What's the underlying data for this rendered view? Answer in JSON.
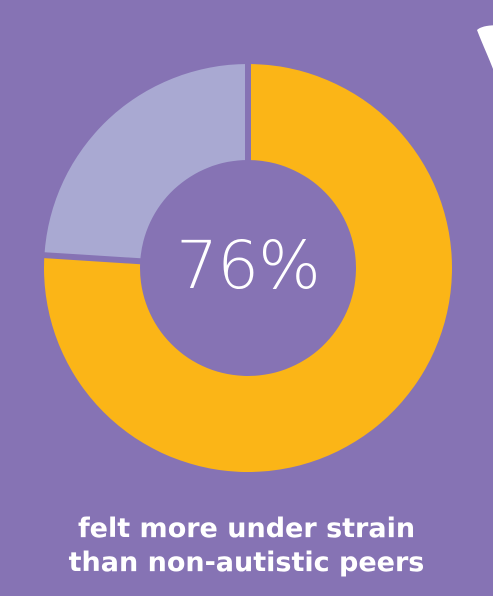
{
  "chart_data": {
    "type": "pie",
    "style": "donut",
    "slices": [
      {
        "label": "",
        "value": 76,
        "color": "#fbb517"
      },
      {
        "label": "",
        "value": 24,
        "color": "#a9a9d2"
      }
    ],
    "center_label": "76%",
    "caption_lines": [
      "felt more under strain",
      "than non-autistic peers"
    ],
    "title": "",
    "legend": "none"
  },
  "colors": {
    "background": "#8673b4",
    "accent": "#fbb517",
    "secondary": "#a9a9d2",
    "text": "#ffffff"
  }
}
